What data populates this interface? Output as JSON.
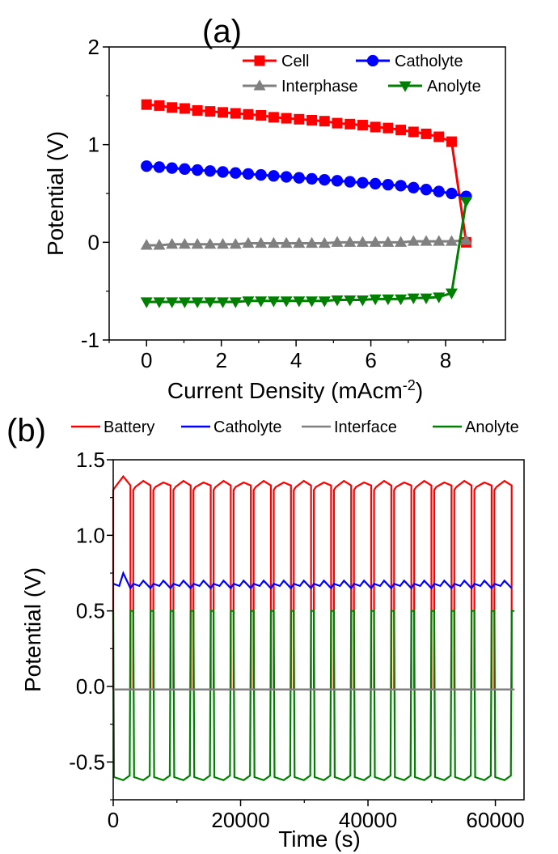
{
  "chart_data": [
    {
      "panel_label": "(a)",
      "type": "line",
      "xlabel": "Current Density (mAcm",
      "xlabel_sup": "-2",
      "xlabel_suffix": ")",
      "ylabel": "Potential (V)",
      "xlim": [
        -1.0,
        9.6
      ],
      "ylim": [
        -1,
        2
      ],
      "xticks": [
        0,
        2,
        4,
        6,
        8
      ],
      "yticks": [
        -1,
        0,
        1,
        2
      ],
      "legend_position": "top-right",
      "series": [
        {
          "name": "Cell",
          "color": "#ff0000",
          "marker": "square",
          "x": [
            0,
            0.34,
            0.68,
            1.02,
            1.36,
            1.7,
            2.04,
            2.38,
            2.72,
            3.06,
            3.4,
            3.74,
            4.08,
            4.42,
            4.76,
            5.1,
            5.44,
            5.78,
            6.12,
            6.46,
            6.8,
            7.14,
            7.48,
            7.82,
            8.16,
            8.55
          ],
          "y": [
            1.41,
            1.4,
            1.38,
            1.37,
            1.35,
            1.34,
            1.33,
            1.32,
            1.31,
            1.3,
            1.28,
            1.27,
            1.26,
            1.25,
            1.24,
            1.22,
            1.21,
            1.2,
            1.18,
            1.17,
            1.15,
            1.13,
            1.11,
            1.08,
            1.03,
            0.0
          ]
        },
        {
          "name": "Catholyte",
          "color": "#0000ff",
          "marker": "circle",
          "x": [
            0,
            0.34,
            0.68,
            1.02,
            1.36,
            1.7,
            2.04,
            2.38,
            2.72,
            3.06,
            3.4,
            3.74,
            4.08,
            4.42,
            4.76,
            5.1,
            5.44,
            5.78,
            6.12,
            6.46,
            6.8,
            7.14,
            7.48,
            7.82,
            8.16,
            8.55
          ],
          "y": [
            0.78,
            0.77,
            0.76,
            0.75,
            0.74,
            0.73,
            0.72,
            0.71,
            0.7,
            0.69,
            0.68,
            0.67,
            0.66,
            0.65,
            0.64,
            0.63,
            0.62,
            0.61,
            0.6,
            0.59,
            0.58,
            0.56,
            0.54,
            0.52,
            0.5,
            0.47
          ]
        },
        {
          "name": "Interphase",
          "color": "#808080",
          "marker": "triangle-up",
          "x": [
            0,
            0.34,
            0.68,
            1.02,
            1.36,
            1.7,
            2.04,
            2.38,
            2.72,
            3.06,
            3.4,
            3.74,
            4.08,
            4.42,
            4.76,
            5.1,
            5.44,
            5.78,
            6.12,
            6.46,
            6.8,
            7.14,
            7.48,
            7.82,
            8.16,
            8.55
          ],
          "y": [
            -0.03,
            -0.03,
            -0.02,
            -0.02,
            -0.02,
            -0.02,
            -0.02,
            -0.02,
            -0.01,
            -0.01,
            -0.01,
            -0.01,
            -0.01,
            -0.01,
            -0.01,
            0.0,
            0.0,
            0.0,
            0.0,
            0.0,
            0.0,
            0.01,
            0.01,
            0.01,
            0.01,
            0.02
          ]
        },
        {
          "name": "Anolyte",
          "color": "#008000",
          "marker": "triangle-down",
          "x": [
            0,
            0.34,
            0.68,
            1.02,
            1.36,
            1.7,
            2.04,
            2.38,
            2.72,
            3.06,
            3.4,
            3.74,
            4.08,
            4.42,
            4.76,
            5.1,
            5.44,
            5.78,
            6.12,
            6.46,
            6.8,
            7.14,
            7.48,
            7.82,
            8.16,
            8.55
          ],
          "y": [
            -0.61,
            -0.61,
            -0.61,
            -0.61,
            -0.61,
            -0.61,
            -0.61,
            -0.61,
            -0.6,
            -0.6,
            -0.6,
            -0.6,
            -0.6,
            -0.6,
            -0.6,
            -0.59,
            -0.59,
            -0.59,
            -0.58,
            -0.58,
            -0.58,
            -0.57,
            -0.57,
            -0.56,
            -0.52,
            0.42
          ]
        }
      ]
    },
    {
      "panel_label": "(b)",
      "type": "line",
      "xlabel": "Time (s)",
      "ylabel": "Potential (V)",
      "xlim": [
        0,
        64500
      ],
      "ylim": [
        -0.75,
        1.5
      ],
      "xticks": [
        0,
        20000,
        40000,
        60000
      ],
      "xtick_labels": [
        "0",
        "20000",
        "40000",
        "60000"
      ],
      "yticks": [
        -0.5,
        0.0,
        0.5,
        1.0,
        1.5
      ],
      "ytick_labels": [
        "-0.5",
        "0.0",
        "0.5",
        "1.0",
        "1.5"
      ],
      "legend_position": "top, above plot",
      "cycles": 20,
      "cycle_period_s": 3150,
      "series": [
        {
          "name": "Battery",
          "color": "#ff0000",
          "charge_plateau": [
            1.3,
            1.35
          ],
          "discharge_value": -0.02,
          "first_peak": 1.39
        },
        {
          "name": "Catholyte",
          "color": "#0000ff",
          "values_range": [
            0.65,
            0.7
          ],
          "first_peak": 0.75
        },
        {
          "name": "Interface",
          "color": "#808080",
          "value": -0.02
        },
        {
          "name": "Anolyte",
          "color": "#008000",
          "high": 0.5,
          "low_plateau": [
            -0.62,
            -0.57
          ]
        }
      ]
    }
  ]
}
